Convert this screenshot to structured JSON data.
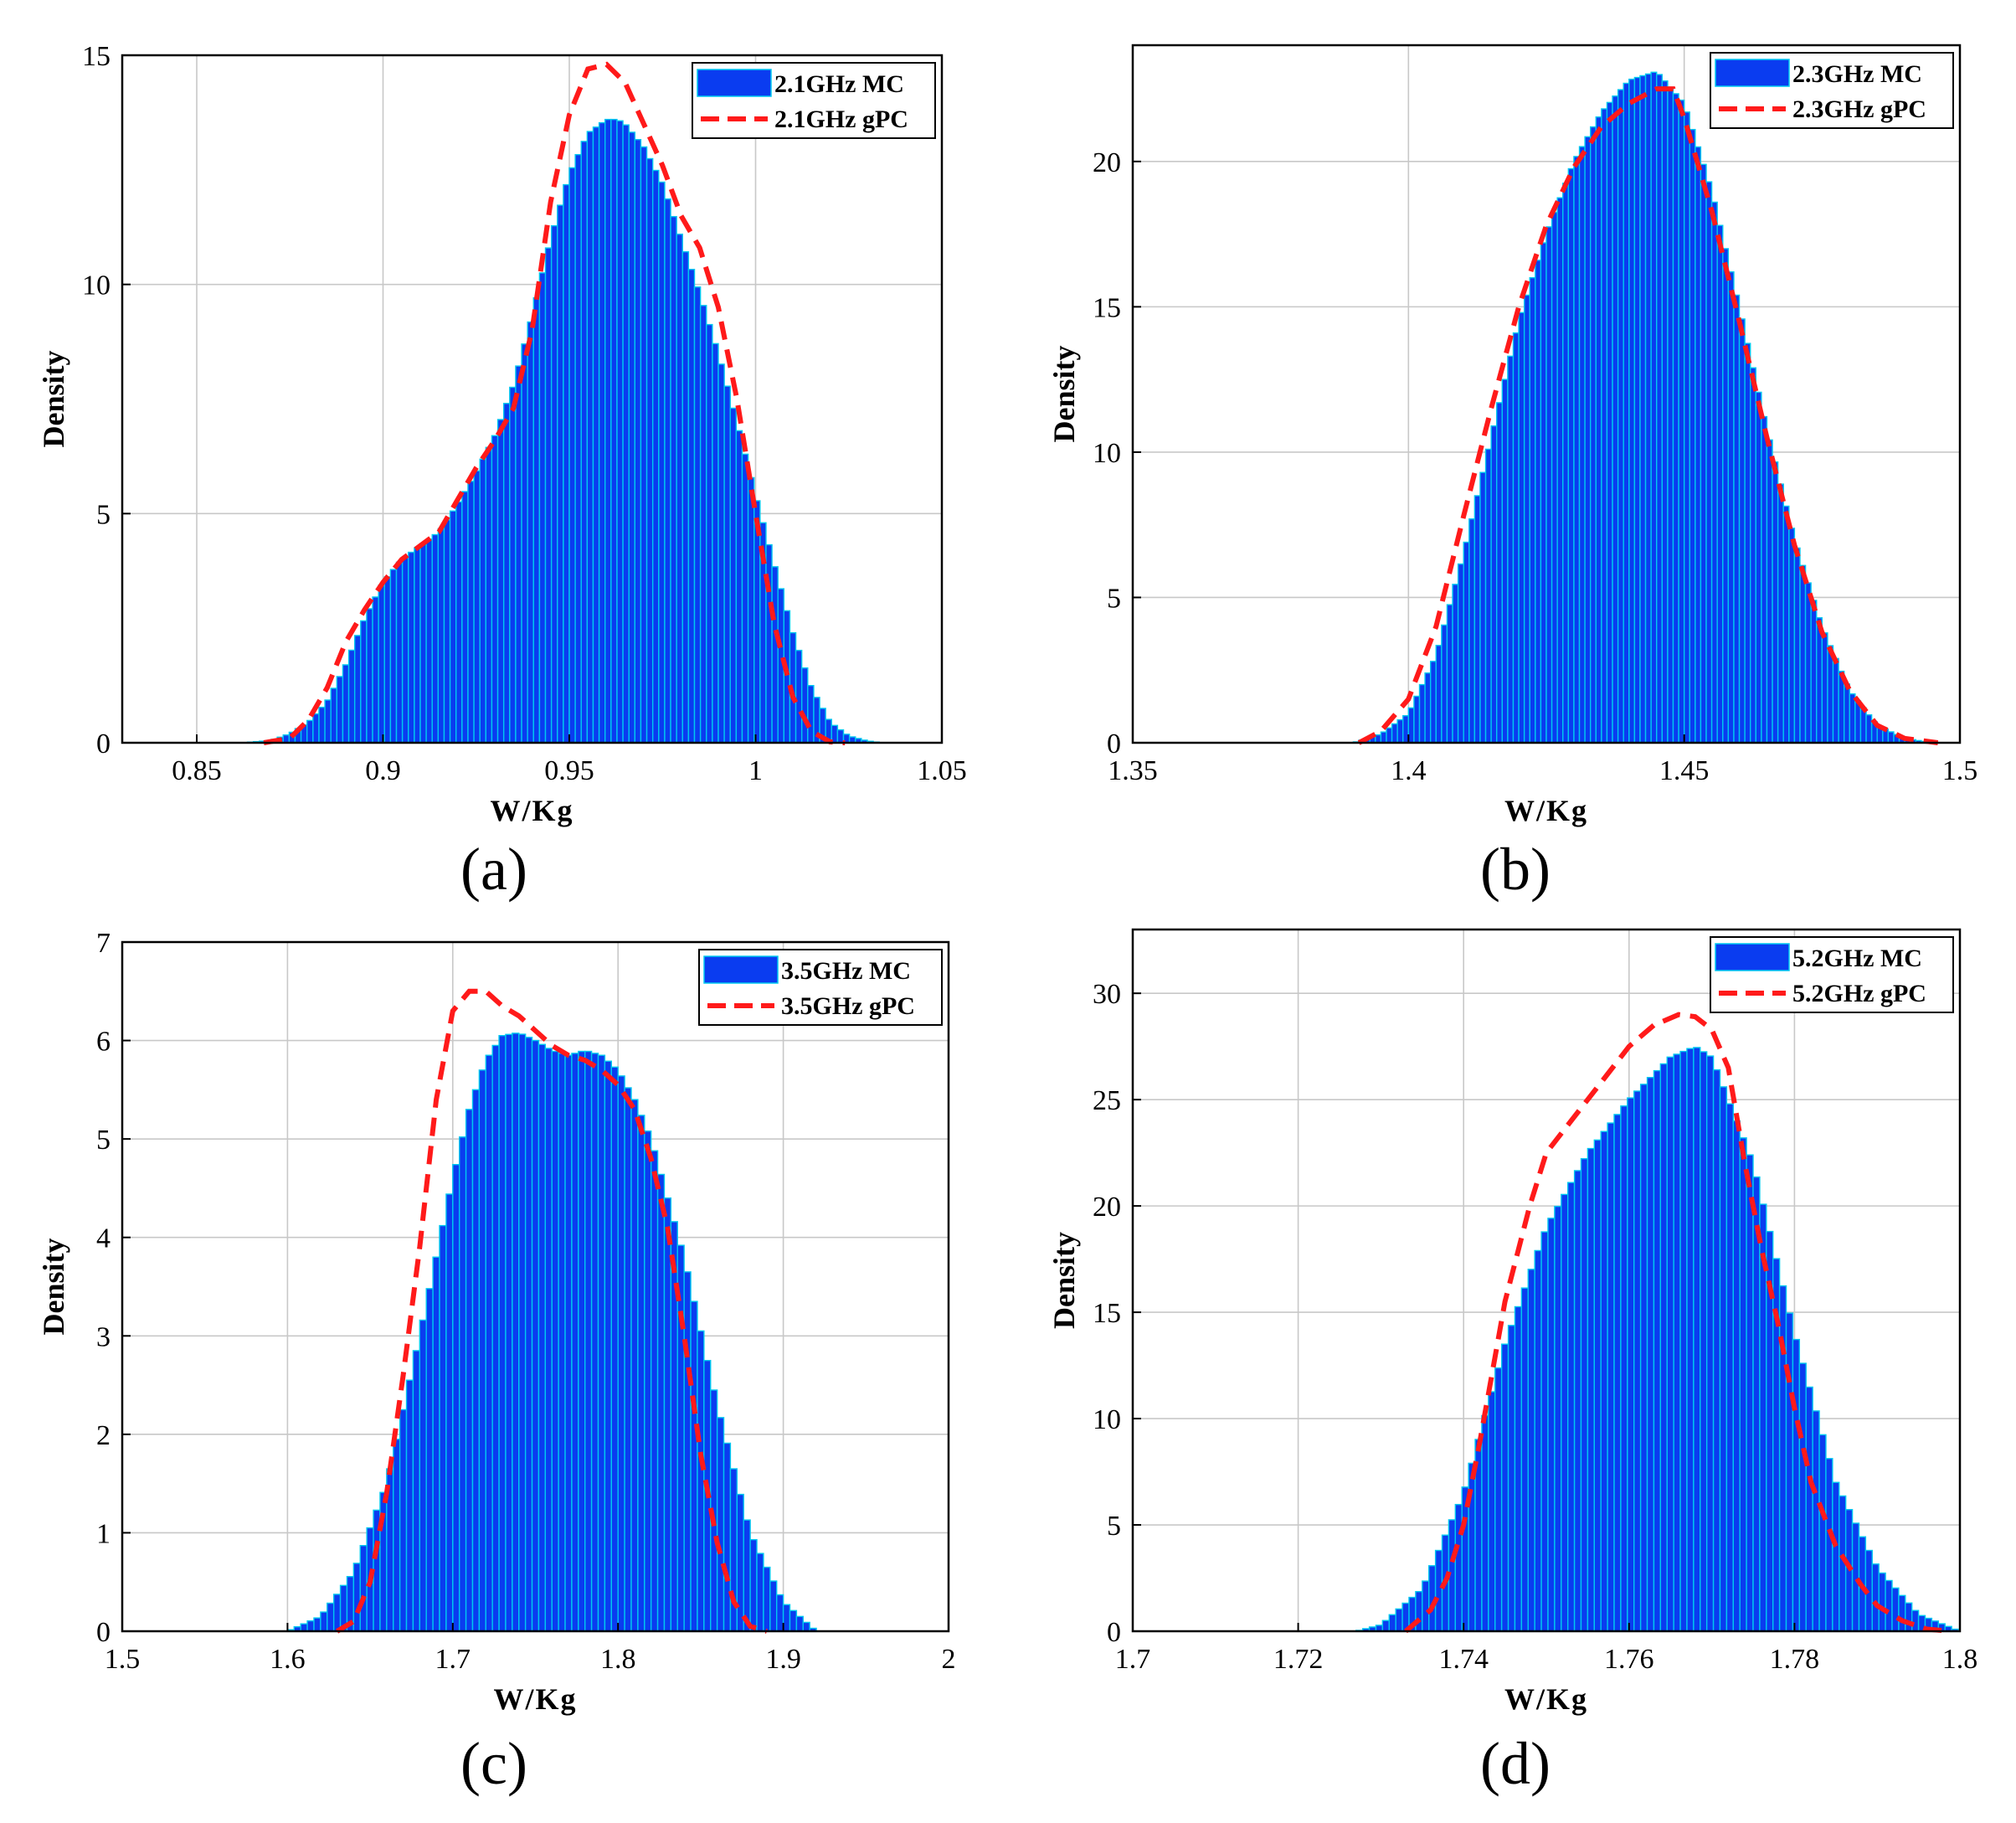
{
  "colors": {
    "mc_fill": "#0a3cf0",
    "mc_edge": "#00c8f0",
    "gpc_line": "#ff1a1a",
    "grid": "#c8c8c8"
  },
  "chart_data": [
    {
      "panel_label": "(a)",
      "type": "bar",
      "ylabel": "Density",
      "xlabel": "W/Kg",
      "xlim": [
        0.83,
        1.05
      ],
      "ylim": [
        0,
        15
      ],
      "xticks": [
        0.85,
        0.9,
        0.95,
        1,
        1.05
      ],
      "xtick_labels": [
        "0.85",
        "0.9",
        "0.95",
        "1",
        "1.05"
      ],
      "yticks": [
        0,
        5,
        10,
        15
      ],
      "ytick_labels": [
        "0",
        "5",
        "10",
        "15"
      ],
      "grid": true,
      "legend_position": "top-right",
      "series": [
        {
          "name": "2.1GHz MC",
          "kind": "histogram",
          "bin_width": 0.0016,
          "profile_x": [
            0.862,
            0.87,
            0.875,
            0.88,
            0.885,
            0.89,
            0.895,
            0.9,
            0.905,
            0.91,
            0.915,
            0.92,
            0.925,
            0.93,
            0.935,
            0.94,
            0.945,
            0.95,
            0.955,
            0.96,
            0.963,
            0.965,
            0.97,
            0.975,
            0.98,
            0.985,
            0.99,
            0.995,
            1.0,
            1.005,
            1.01,
            1.015,
            1.02,
            1.025,
            1.03,
            1.034
          ],
          "profile_y": [
            0.0,
            0.05,
            0.2,
            0.45,
            0.9,
            1.7,
            2.7,
            3.5,
            4.0,
            4.3,
            4.6,
            5.2,
            5.9,
            6.7,
            7.8,
            9.3,
            11.0,
            12.4,
            13.3,
            13.6,
            13.6,
            13.5,
            13.0,
            12.2,
            11.0,
            9.8,
            8.5,
            7.0,
            5.4,
            3.9,
            2.4,
            1.2,
            0.45,
            0.15,
            0.04,
            0.0
          ]
        },
        {
          "name": "2.1GHz gPC",
          "kind": "curve",
          "dashed": true,
          "x": [
            0.868,
            0.875,
            0.88,
            0.885,
            0.89,
            0.895,
            0.9,
            0.905,
            0.91,
            0.915,
            0.92,
            0.925,
            0.93,
            0.935,
            0.94,
            0.945,
            0.95,
            0.955,
            0.96,
            0.965,
            0.97,
            0.975,
            0.98,
            0.985,
            0.99,
            0.995,
            1.0,
            1.005,
            1.01,
            1.015,
            1.02,
            1.024
          ],
          "y": [
            0.0,
            0.1,
            0.5,
            1.2,
            2.2,
            2.9,
            3.5,
            4.0,
            4.3,
            4.6,
            5.3,
            6.0,
            6.6,
            7.3,
            9.0,
            11.8,
            13.7,
            14.7,
            14.8,
            14.4,
            13.5,
            12.6,
            11.5,
            10.8,
            9.5,
            7.5,
            5.0,
            2.6,
            1.0,
            0.25,
            0.02,
            0.0
          ]
        }
      ]
    },
    {
      "panel_label": "(b)",
      "type": "bar",
      "ylabel": "Density",
      "xlabel": "W/Kg",
      "xlim": [
        1.35,
        1.5
      ],
      "ylim": [
        0,
        24
      ],
      "xticks": [
        1.35,
        1.4,
        1.45,
        1.5
      ],
      "xtick_labels": [
        "1.35",
        "1.4",
        "1.45",
        "1.5"
      ],
      "yticks": [
        0,
        5,
        10,
        15,
        20
      ],
      "ytick_labels": [
        "0",
        "5",
        "10",
        "15",
        "20"
      ],
      "grid": true,
      "legend_position": "top-right",
      "series": [
        {
          "name": "2.3GHz MC",
          "kind": "histogram",
          "bin_width": 0.001,
          "profile_x": [
            1.39,
            1.395,
            1.4,
            1.405,
            1.41,
            1.415,
            1.42,
            1.425,
            1.43,
            1.435,
            1.44,
            1.445,
            1.45,
            1.455,
            1.46,
            1.465,
            1.47,
            1.475,
            1.48,
            1.485,
            1.49,
            1.495
          ],
          "profile_y": [
            0.0,
            0.3,
            1.0,
            3.0,
            6.5,
            10.5,
            14.5,
            17.5,
            20.0,
            21.7,
            22.8,
            23.1,
            22.0,
            19.0,
            15.0,
            10.8,
            7.0,
            4.0,
            1.8,
            0.6,
            0.15,
            0.0
          ]
        },
        {
          "name": "2.3GHz gPC",
          "kind": "curve",
          "dashed": true,
          "x": [
            1.391,
            1.395,
            1.4,
            1.405,
            1.41,
            1.415,
            1.42,
            1.425,
            1.43,
            1.435,
            1.44,
            1.445,
            1.448,
            1.45,
            1.455,
            1.46,
            1.465,
            1.47,
            1.475,
            1.48,
            1.485,
            1.49,
            1.496
          ],
          "y": [
            0.0,
            0.4,
            1.5,
            4.0,
            7.8,
            11.5,
            15.0,
            17.8,
            19.8,
            21.2,
            22.0,
            22.5,
            22.5,
            21.5,
            18.3,
            14.5,
            10.5,
            6.8,
            3.8,
            1.8,
            0.6,
            0.15,
            0.0
          ]
        }
      ]
    },
    {
      "panel_label": "(c)",
      "type": "bar",
      "ylabel": "Density",
      "xlabel": "W/Kg",
      "xlim": [
        1.5,
        2.0
      ],
      "ylim": [
        0,
        7
      ],
      "xticks": [
        1.5,
        1.6,
        1.7,
        1.8,
        1.9,
        2.0
      ],
      "xtick_labels": [
        "1.5",
        "1.6",
        "1.7",
        "1.8",
        "1.9",
        "2"
      ],
      "yticks": [
        0,
        1,
        2,
        3,
        4,
        5,
        6,
        7
      ],
      "ytick_labels": [
        "0",
        "1",
        "2",
        "3",
        "4",
        "5",
        "6",
        "7"
      ],
      "grid": true,
      "legend_position": "top-right",
      "series": [
        {
          "name": "3.5GHz MC",
          "kind": "histogram",
          "bin_width": 0.004,
          "profile_x": [
            1.6,
            1.62,
            1.64,
            1.66,
            1.68,
            1.7,
            1.71,
            1.72,
            1.73,
            1.74,
            1.75,
            1.76,
            1.77,
            1.78,
            1.79,
            1.8,
            1.81,
            1.82,
            1.84,
            1.86,
            1.88,
            1.9,
            1.92
          ],
          "profile_y": [
            0.0,
            0.15,
            0.6,
            1.5,
            3.0,
            4.6,
            5.3,
            5.8,
            6.05,
            6.08,
            6.0,
            5.9,
            5.85,
            5.9,
            5.85,
            5.7,
            5.4,
            5.0,
            3.8,
            2.3,
            1.0,
            0.3,
            0.0
          ]
        },
        {
          "name": "3.5GHz gPC",
          "kind": "curve",
          "dashed": true,
          "x": [
            1.63,
            1.64,
            1.65,
            1.66,
            1.67,
            1.68,
            1.69,
            1.7,
            1.71,
            1.72,
            1.73,
            1.74,
            1.75,
            1.76,
            1.77,
            1.78,
            1.79,
            1.8,
            1.81,
            1.82,
            1.83,
            1.84,
            1.85,
            1.86,
            1.87,
            1.88,
            1.89
          ],
          "y": [
            0.0,
            0.1,
            0.5,
            1.4,
            2.6,
            3.9,
            5.4,
            6.3,
            6.5,
            6.5,
            6.35,
            6.25,
            6.1,
            5.95,
            5.85,
            5.8,
            5.7,
            5.55,
            5.3,
            4.8,
            4.1,
            3.0,
            1.8,
            0.9,
            0.3,
            0.05,
            0.0
          ]
        }
      ]
    },
    {
      "panel_label": "(d)",
      "type": "bar",
      "ylabel": "Density",
      "xlabel": "W/Kg",
      "xlim": [
        1.7,
        1.8
      ],
      "ylim": [
        0,
        33
      ],
      "xticks": [
        1.7,
        1.72,
        1.74,
        1.76,
        1.78,
        1.8
      ],
      "xtick_labels": [
        "1.7",
        "1.72",
        "1.74",
        "1.76",
        "1.78",
        "1.8"
      ],
      "yticks": [
        0,
        5,
        10,
        15,
        20,
        25,
        30
      ],
      "ytick_labels": [
        "0",
        "5",
        "10",
        "15",
        "20",
        "25",
        "30"
      ],
      "grid": true,
      "legend_position": "top-right",
      "series": [
        {
          "name": "5.2GHz MC",
          "kind": "histogram",
          "bin_width": 0.0008,
          "profile_x": [
            1.727,
            1.73,
            1.735,
            1.74,
            1.745,
            1.75,
            1.755,
            1.76,
            1.765,
            1.768,
            1.77,
            1.775,
            1.78,
            1.785,
            1.79,
            1.795,
            1.8
          ],
          "profile_y": [
            0.0,
            0.3,
            2.0,
            6.5,
            13.5,
            19.0,
            22.5,
            25.0,
            27.0,
            27.5,
            27.0,
            22.0,
            14.0,
            7.0,
            3.0,
            0.8,
            0.0
          ]
        },
        {
          "name": "5.2GHz gPC",
          "kind": "curve",
          "dashed": true,
          "x": [
            1.733,
            1.736,
            1.738,
            1.74,
            1.742,
            1.745,
            1.748,
            1.75,
            1.753,
            1.756,
            1.76,
            1.763,
            1.766,
            1.768,
            1.77,
            1.772,
            1.774,
            1.776,
            1.778,
            1.78,
            1.782,
            1.785,
            1.788,
            1.79,
            1.793,
            1.796,
            1.799
          ],
          "y": [
            0.0,
            1.0,
            2.5,
            5.0,
            9.0,
            15.5,
            20.0,
            22.5,
            24.0,
            25.5,
            27.5,
            28.5,
            29.0,
            28.9,
            28.3,
            26.5,
            22.0,
            18.0,
            14.5,
            10.5,
            7.0,
            4.0,
            2.2,
            1.2,
            0.5,
            0.1,
            0.0
          ]
        }
      ]
    }
  ]
}
